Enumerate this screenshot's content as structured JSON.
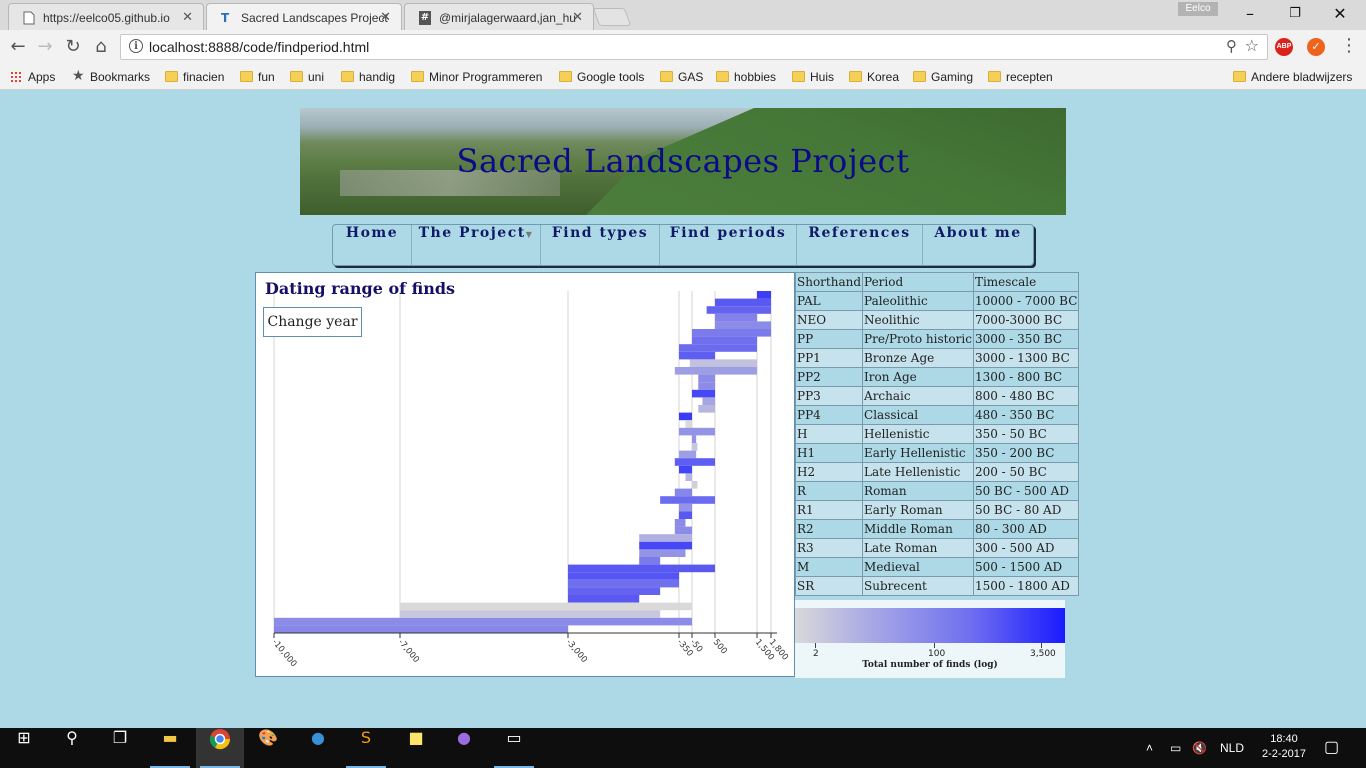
{
  "tabs": [
    {
      "title": "https://eelco05.github.io",
      "icon": "page-icon"
    },
    {
      "title": "Sacred Landscapes Project",
      "icon": "site-favicon-icon"
    },
    {
      "title": "@mirjalagerwaard,jan_hu",
      "icon": "hashtag-icon"
    }
  ],
  "profile": "Eelco",
  "address": "localhost:8888/code/findperiod.html",
  "bookmarks": [
    "Apps",
    "Bookmarks",
    "finacien",
    "fun",
    "uni",
    "handig",
    "Minor Programmeren",
    "Google tools",
    "GAS",
    "hobbies",
    "Huis",
    "Korea",
    "Gaming",
    "recepten"
  ],
  "other_bookmarks": "Andere bladwijzers",
  "site": {
    "title": "Sacred Landscapes Project",
    "nav": [
      "Home",
      "The Project",
      "Find types",
      "Find periods",
      "References",
      "About me"
    ]
  },
  "chart_panel": {
    "title": "Dating range of finds",
    "button": "Change year"
  },
  "chart_data": {
    "type": "bar",
    "title": "Dating range of finds",
    "x_axis_ticks": [
      -10000,
      -7000,
      -3000,
      -350,
      -50,
      500,
      1500,
      1800
    ],
    "x_tick_labels": [
      "-10,000",
      "-7,000",
      "-3,000",
      "-350",
      "-50",
      "500",
      "1,500",
      "1,800"
    ],
    "xlim": [
      -10000,
      1800
    ],
    "bars": [
      {
        "from": 1500,
        "to": 1800,
        "finds": 900
      },
      {
        "from": 500,
        "to": 1800,
        "finds": 300
      },
      {
        "from": 300,
        "to": 1800,
        "finds": 200
      },
      {
        "from": 500,
        "to": 1500,
        "finds": 60
      },
      {
        "from": 500,
        "to": 1800,
        "finds": 40
      },
      {
        "from": -50,
        "to": 1800,
        "finds": 80
      },
      {
        "from": -50,
        "to": 1500,
        "finds": 120
      },
      {
        "from": -350,
        "to": 1500,
        "finds": 150
      },
      {
        "from": -350,
        "to": 500,
        "finds": 250
      },
      {
        "from": -100,
        "to": 1500,
        "finds": 5
      },
      {
        "from": -450,
        "to": 1500,
        "finds": 20
      },
      {
        "from": 100,
        "to": 500,
        "finds": 40
      },
      {
        "from": 100,
        "to": 500,
        "finds": 40
      },
      {
        "from": -50,
        "to": 500,
        "finds": 600
      },
      {
        "from": 200,
        "to": 500,
        "finds": 15
      },
      {
        "from": 100,
        "to": 500,
        "finds": 8
      },
      {
        "from": -350,
        "to": -50,
        "finds": 1000
      },
      {
        "from": -200,
        "to": -50,
        "finds": 2
      },
      {
        "from": -350,
        "to": 500,
        "finds": 30
      },
      {
        "from": -50,
        "to": 50,
        "finds": 30
      },
      {
        "from": -50,
        "to": 80,
        "finds": 4
      },
      {
        "from": -350,
        "to": 50,
        "finds": 20
      },
      {
        "from": -450,
        "to": 500,
        "finds": 250
      },
      {
        "from": -350,
        "to": -50,
        "finds": 700
      },
      {
        "from": -200,
        "to": -50,
        "finds": 8
      },
      {
        "from": -50,
        "to": 80,
        "finds": 3
      },
      {
        "from": -450,
        "to": -50,
        "finds": 50
      },
      {
        "from": -800,
        "to": 500,
        "finds": 150
      },
      {
        "from": -350,
        "to": -50,
        "finds": 30
      },
      {
        "from": -350,
        "to": -50,
        "finds": 300
      },
      {
        "from": -450,
        "to": -200,
        "finds": 40
      },
      {
        "from": -450,
        "to": -50,
        "finds": 40
      },
      {
        "from": -1300,
        "to": -50,
        "finds": 10
      },
      {
        "from": -1300,
        "to": -50,
        "finds": 600
      },
      {
        "from": -1300,
        "to": -200,
        "finds": 30
      },
      {
        "from": -1300,
        "to": -800,
        "finds": 80
      },
      {
        "from": -3000,
        "to": 500,
        "finds": 300
      },
      {
        "from": -3000,
        "to": -350,
        "finds": 350
      },
      {
        "from": -3000,
        "to": -350,
        "finds": 120
      },
      {
        "from": -3000,
        "to": -800,
        "finds": 200
      },
      {
        "from": -3000,
        "to": -1300,
        "finds": 300
      },
      {
        "from": -7000,
        "to": -50,
        "finds": 2
      },
      {
        "from": -7000,
        "to": -800,
        "finds": 4
      },
      {
        "from": -10000,
        "to": -50,
        "finds": 40
      },
      {
        "from": -10000,
        "to": -3000,
        "finds": 50
      }
    ]
  },
  "periods_table": {
    "headers": [
      "Shorthand",
      "Period",
      "Timescale"
    ],
    "rows": [
      [
        "PAL",
        "Paleolithic",
        "10000 - 7000 BC"
      ],
      [
        "NEO",
        "Neolithic",
        "7000-3000 BC"
      ],
      [
        "PP",
        "Pre/Proto historic",
        "3000 - 350 BC"
      ],
      [
        "PP1",
        "Bronze Age",
        "3000 - 1300 BC"
      ],
      [
        "PP2",
        "Iron Age",
        "1300 - 800 BC"
      ],
      [
        "PP3",
        "Archaic",
        "800 - 480 BC"
      ],
      [
        "PP4",
        "Classical",
        "480 - 350 BC"
      ],
      [
        "H",
        "Hellenistic",
        "350 - 50 BC"
      ],
      [
        "H1",
        "Early Hellenistic",
        "350 - 200 BC"
      ],
      [
        "H2",
        "Late Hellenistic",
        "200 - 50 BC"
      ],
      [
        "R",
        "Roman",
        "50 BC - 500 AD"
      ],
      [
        "R1",
        "Early Roman",
        "50 BC - 80 AD"
      ],
      [
        "R2",
        "Middle Roman",
        "80 - 300 AD"
      ],
      [
        "R3",
        "Late Roman",
        "300 - 500 AD"
      ],
      [
        "M",
        "Medieval",
        "500 - 1500 AD"
      ],
      [
        "SR",
        "Subrecent",
        "1500 - 1800 AD"
      ]
    ]
  },
  "legend": {
    "ticks": [
      "2",
      "100",
      "3,500"
    ],
    "caption": "Total number of finds (log)",
    "colors": [
      "#d9d9d9",
      "#1a1aff"
    ]
  },
  "taskbar": {
    "language": "NLD",
    "time": "18:40",
    "date": "2-2-2017"
  }
}
